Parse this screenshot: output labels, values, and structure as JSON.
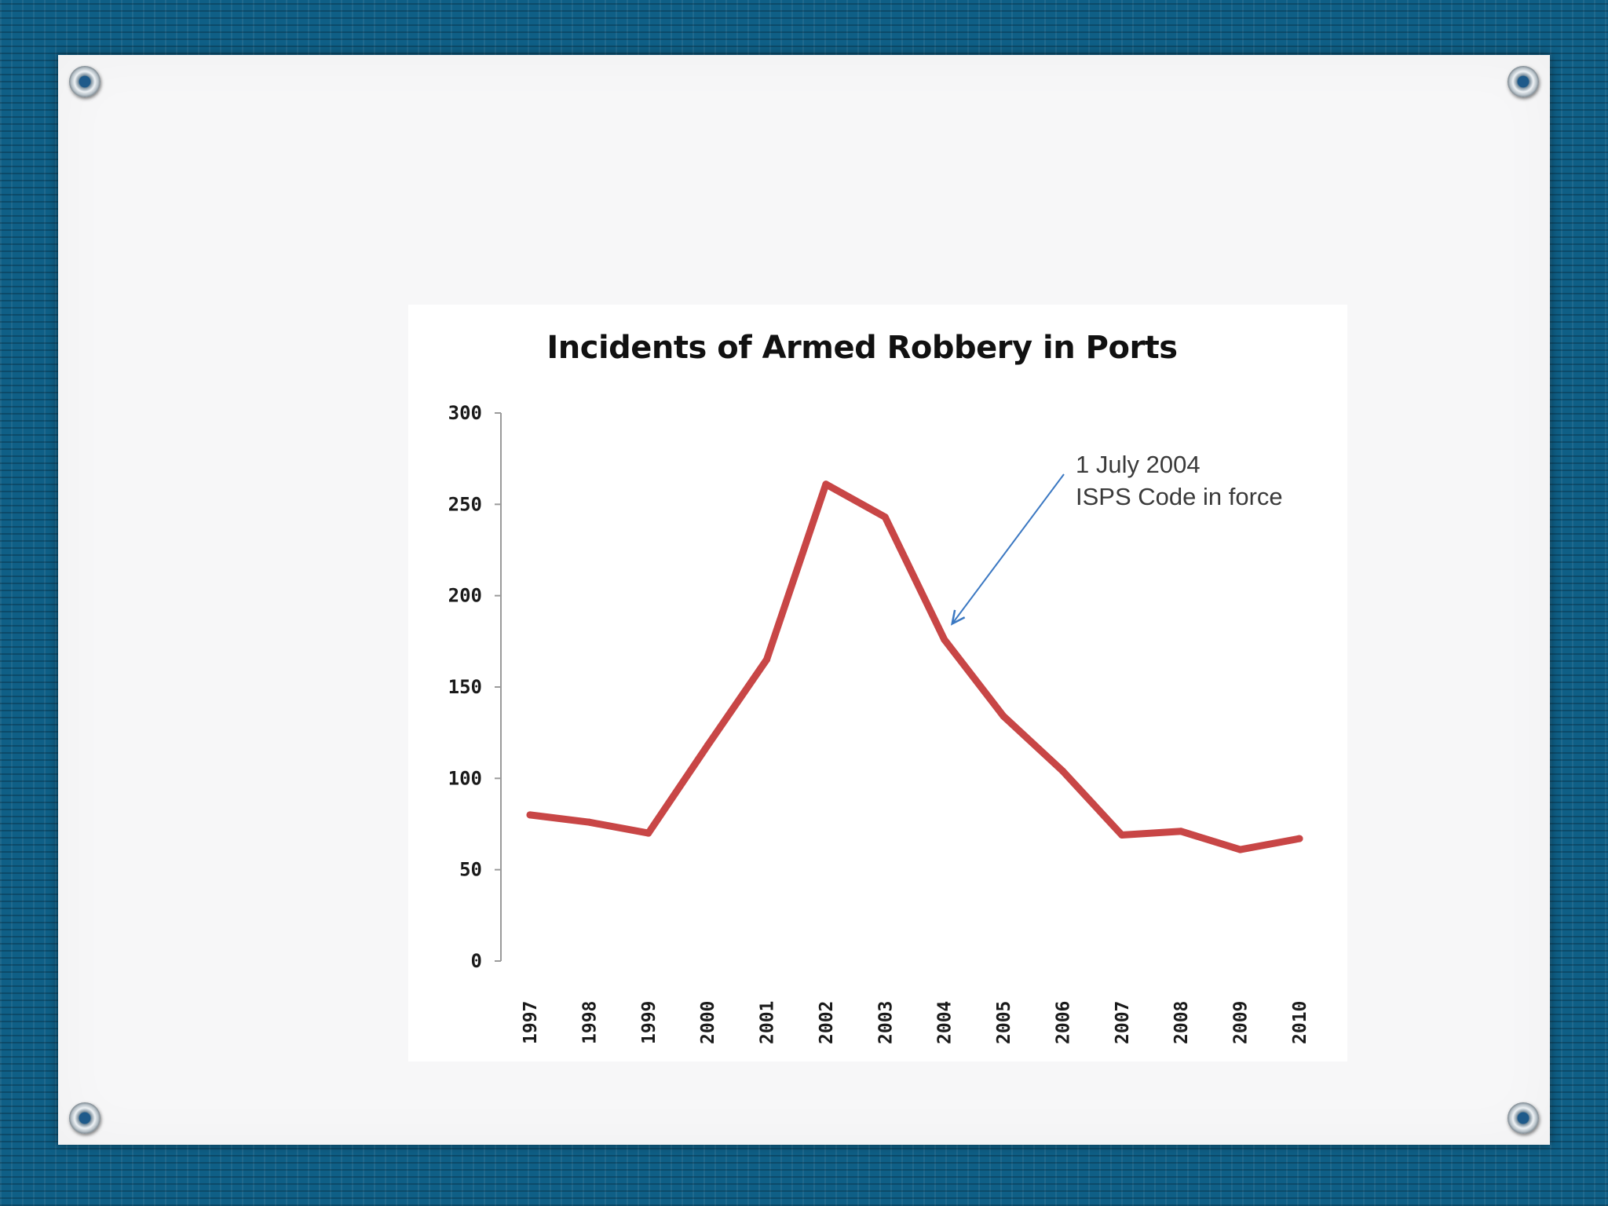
{
  "slide": {
    "background_color": "#0f5f86",
    "panel_color": "#f7f7f8"
  },
  "chart_data": {
    "type": "line",
    "title": "Incidents of Armed Robbery in Ports",
    "xlabel": "",
    "ylabel": "",
    "categories": [
      "1997",
      "1998",
      "1999",
      "2000",
      "2001",
      "2002",
      "2003",
      "2004",
      "2005",
      "2006",
      "2007",
      "2008",
      "2009",
      "2010"
    ],
    "series": [
      {
        "values": [
          80,
          76,
          70,
          118,
          165,
          261,
          243,
          176,
          134,
          104,
          69,
          71,
          61,
          67
        ],
        "color": "#c84646"
      }
    ],
    "ylim": [
      0,
      300
    ],
    "yticks": [
      "0",
      "50",
      "100",
      "150",
      "200",
      "250",
      "300"
    ],
    "grid": false,
    "legend": "none",
    "annotation": {
      "lines": [
        "1 July 2004",
        "ISPS Code in force"
      ],
      "points_to": "2004",
      "color": "#3b78c2"
    }
  }
}
